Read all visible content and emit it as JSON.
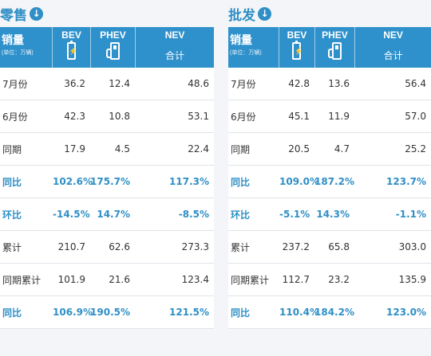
{
  "headers": {
    "sales": "销量",
    "unit": "(单位：万辆)",
    "bev": "BEV",
    "phev": "PHEV",
    "nev": "NEV",
    "nev_sub": "合计"
  },
  "retail": {
    "title": "零售",
    "rows": [
      {
        "label": "7月份",
        "bev": "36.2",
        "phev": "12.4",
        "nev": "48.6"
      },
      {
        "label": "6月份",
        "bev": "42.3",
        "phev": "10.8",
        "nev": "53.1"
      },
      {
        "label": "同期",
        "bev": "17.9",
        "phev": "4.5",
        "nev": "22.4"
      },
      {
        "label": "同比",
        "bev": "102.6%",
        "phev": "175.7%",
        "nev": "117.3%"
      },
      {
        "label": "环比",
        "bev": "-14.5%",
        "phev": "14.7%",
        "nev": "-8.5%"
      },
      {
        "label": "累计",
        "bev": "210.7",
        "phev": "62.6",
        "nev": "273.3"
      },
      {
        "label": "同期累计",
        "bev": "101.9",
        "phev": "21.6",
        "nev": "123.4"
      },
      {
        "label": "同比",
        "bev": "106.9%",
        "phev": "190.5%",
        "nev": "121.5%"
      }
    ]
  },
  "wholesale": {
    "title": "批发",
    "rows": [
      {
        "label": "7月份",
        "bev": "42.8",
        "phev": "13.6",
        "nev": "56.4"
      },
      {
        "label": "6月份",
        "bev": "45.1",
        "phev": "11.9",
        "nev": "57.0"
      },
      {
        "label": "同期",
        "bev": "20.5",
        "phev": "4.7",
        "nev": "25.2"
      },
      {
        "label": "同比",
        "bev": "109.0%",
        "phev": "187.2%",
        "nev": "123.7%"
      },
      {
        "label": "环比",
        "bev": "-5.1%",
        "phev": "14.3%",
        "nev": "-1.1%"
      },
      {
        "label": "累计",
        "bev": "237.2",
        "phev": "65.8",
        "nev": "303.0"
      },
      {
        "label": "同期累计",
        "bev": "112.7",
        "phev": "23.2",
        "nev": "135.9"
      },
      {
        "label": "同比",
        "bev": "110.4%",
        "phev": "184.2%",
        "nev": "123.0%"
      }
    ]
  },
  "icons": {
    "title_icon": "arrow-down-circle-icon",
    "bev_icon": "battery-icon",
    "phev_icon": "charging-station-icon"
  }
}
